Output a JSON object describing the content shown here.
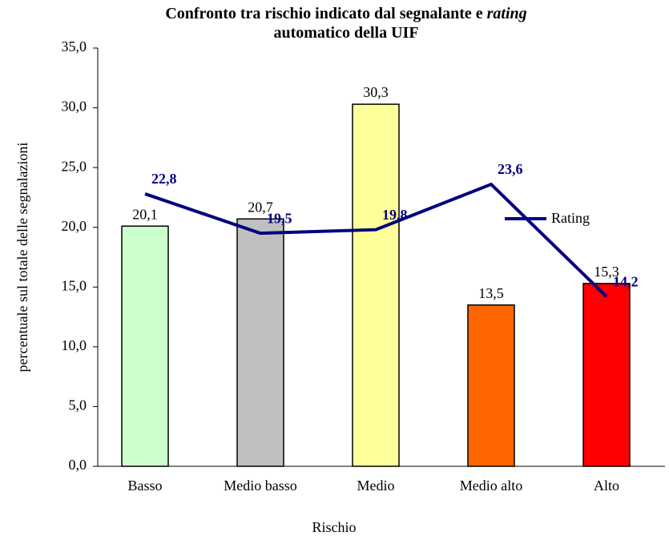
{
  "chart_data": {
    "type": "bar",
    "title": [
      "Confronto tra rischio indicato dal segnalante e ",
      "rating",
      "automatico della UIF"
    ],
    "y_label": "percentuale sul totale delle segnalazioni",
    "x_label": "Rischio",
    "categories": [
      "Basso",
      "Medio basso",
      "Medio",
      "Medio alto",
      "Alto"
    ],
    "values": [
      20.1,
      20.7,
      30.3,
      13.5,
      15.3
    ],
    "value_labels": [
      "20,1",
      "20,7",
      "30,3",
      "13,5",
      "15,3"
    ],
    "colors": [
      "#ccffcc",
      "#c0c0c0",
      "#ffff99",
      "#ff6600",
      "#ff0000"
    ],
    "line": {
      "name": "Rating",
      "color": "#000080",
      "values": [
        22.8,
        19.5,
        19.8,
        23.6,
        14.2
      ],
      "value_labels": [
        "22,8",
        "19,5",
        "19,8",
        "23,6",
        "14,2"
      ]
    },
    "ylim": [
      0,
      35
    ],
    "yticks": [
      {
        "value": 0,
        "label": "0,0"
      },
      {
        "value": 5,
        "label": "5,0"
      },
      {
        "value": 10,
        "label": "10,0"
      },
      {
        "value": 15,
        "label": "15,0"
      },
      {
        "value": 20,
        "label": "20,0"
      },
      {
        "value": 25,
        "label": "25,0"
      },
      {
        "value": 30,
        "label": "30,0"
      },
      {
        "value": 35,
        "label": "35,0"
      }
    ],
    "legend": "right"
  }
}
